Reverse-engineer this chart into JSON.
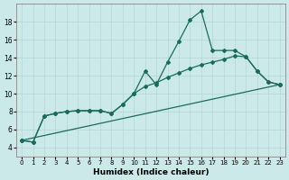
{
  "xlabel": "Humidex (Indice chaleur)",
  "bg_color": "#cce9e9",
  "grid_color": "#b8d8d8",
  "line_color": "#1a6b5a",
  "series1": {
    "x": [
      0,
      1,
      2,
      3,
      4,
      5,
      6,
      7,
      8,
      9,
      10,
      11,
      12,
      13,
      14,
      15,
      16,
      17,
      18,
      19,
      20,
      21,
      22,
      23
    ],
    "y": [
      4.8,
      4.6,
      7.5,
      7.8,
      8.0,
      8.1,
      8.1,
      8.1,
      7.8,
      8.8,
      10.0,
      12.5,
      11.0,
      13.5,
      15.8,
      18.2,
      19.2,
      14.8,
      14.8,
      14.8,
      14.1,
      12.5,
      11.3,
      11.0
    ]
  },
  "series2": {
    "x": [
      0,
      1,
      2,
      3,
      4,
      5,
      6,
      7,
      8,
      9,
      10,
      11,
      12,
      13,
      14,
      15,
      16,
      17,
      18,
      19,
      20,
      21,
      22,
      23
    ],
    "y": [
      4.8,
      4.6,
      7.5,
      7.8,
      8.0,
      8.1,
      8.1,
      8.1,
      7.8,
      8.8,
      10.0,
      10.8,
      11.2,
      11.8,
      12.3,
      12.8,
      13.2,
      13.5,
      13.8,
      14.2,
      14.1,
      12.5,
      11.3,
      11.0
    ]
  },
  "series3": {
    "x": [
      0,
      23
    ],
    "y": [
      4.8,
      11.0
    ]
  },
  "ylim": [
    3,
    20
  ],
  "xlim": [
    -0.5,
    23.5
  ],
  "yticks": [
    4,
    6,
    8,
    10,
    12,
    14,
    16,
    18
  ],
  "xticks": [
    0,
    1,
    2,
    3,
    4,
    5,
    6,
    7,
    8,
    9,
    10,
    11,
    12,
    13,
    14,
    15,
    16,
    17,
    18,
    19,
    20,
    21,
    22,
    23
  ]
}
